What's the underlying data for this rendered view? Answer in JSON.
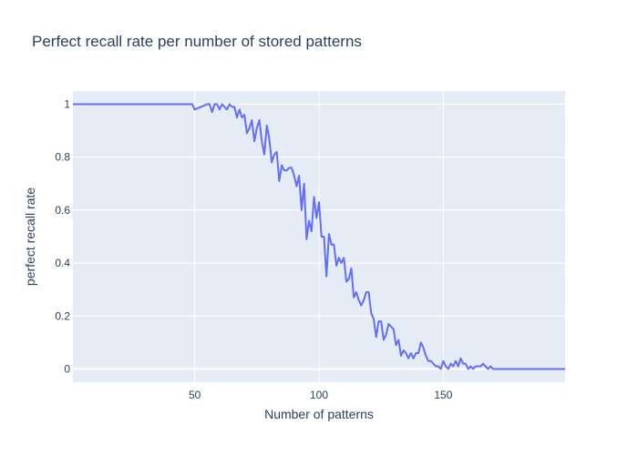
{
  "chart_data": {
    "type": "line",
    "title": "Perfect recall rate per number of stored patterns",
    "xlabel": "Number of patterns",
    "ylabel": "perfect recall rate",
    "xlim": [
      1,
      199
    ],
    "ylim": [
      -0.05,
      1.05
    ],
    "x_ticks": [
      50,
      100,
      150
    ],
    "y_ticks": [
      0,
      0.2,
      0.4,
      0.6,
      0.8,
      1
    ],
    "y_tick_labels": [
      "0",
      "0.2",
      "0.4",
      "0.6",
      "0.8",
      "1"
    ],
    "grid": true,
    "colors": {
      "line": "#636efa",
      "plot_bg": "#e5ecf6",
      "grid": "#ffffff",
      "text": "#2a3f5f"
    },
    "series": [
      {
        "x": [
          1,
          48,
          49,
          50,
          55,
          56,
          57,
          58,
          59,
          60,
          61,
          62,
          63,
          64,
          65,
          66,
          67,
          68,
          69,
          70,
          71,
          72,
          73,
          74,
          75,
          76,
          77,
          78,
          79,
          80,
          81,
          82,
          83,
          84,
          85,
          86,
          87,
          88,
          89,
          90,
          91,
          92,
          93,
          94,
          95,
          96,
          97,
          98,
          99,
          100,
          101,
          102,
          103,
          104,
          105,
          106,
          107,
          108,
          109,
          110,
          111,
          112,
          113,
          114,
          115,
          116,
          117,
          118,
          119,
          120,
          121,
          122,
          123,
          124,
          125,
          126,
          127,
          128,
          129,
          130,
          131,
          132,
          133,
          134,
          135,
          136,
          137,
          138,
          139,
          140,
          141,
          142,
          143,
          144,
          145,
          146,
          147,
          148,
          149,
          150,
          151,
          152,
          153,
          154,
          155,
          156,
          157,
          158,
          159,
          160,
          161,
          162,
          163,
          164,
          165,
          166,
          167,
          168,
          169,
          170,
          171,
          172,
          173,
          174,
          175,
          176,
          199
        ],
        "y": [
          1,
          1,
          1,
          0.98,
          1,
          1,
          0.97,
          1,
          1,
          0.98,
          1,
          0.99,
          0.98,
          1,
          0.99,
          0.99,
          0.95,
          0.98,
          0.95,
          0.96,
          0.89,
          0.91,
          0.94,
          0.86,
          0.91,
          0.94,
          0.86,
          0.81,
          0.92,
          0.87,
          0.78,
          0.81,
          0.82,
          0.71,
          0.77,
          0.75,
          0.75,
          0.76,
          0.76,
          0.73,
          0.69,
          0.73,
          0.6,
          0.7,
          0.49,
          0.56,
          0.52,
          0.65,
          0.57,
          0.63,
          0.5,
          0.5,
          0.35,
          0.51,
          0.47,
          0.47,
          0.39,
          0.42,
          0.4,
          0.42,
          0.33,
          0.34,
          0.38,
          0.27,
          0.29,
          0.26,
          0.24,
          0.26,
          0.29,
          0.29,
          0.21,
          0.19,
          0.12,
          0.18,
          0.18,
          0.11,
          0.13,
          0.17,
          0.16,
          0.15,
          0.09,
          0.11,
          0.05,
          0.07,
          0.06,
          0.04,
          0.06,
          0.04,
          0.06,
          0.06,
          0.1,
          0.08,
          0.05,
          0.03,
          0.03,
          0.02,
          0.01,
          0.01,
          0.0,
          0.03,
          0.01,
          0.0,
          0.02,
          0.01,
          0.03,
          0.01,
          0.04,
          0.02,
          0.02,
          0.0,
          0.01,
          0.0,
          0.01,
          0.01,
          0.01,
          0.02,
          0.01,
          0.0,
          0.01,
          0.0,
          0.0,
          0.0,
          0.0,
          0.0,
          0.0,
          0.0,
          0.0
        ]
      }
    ]
  }
}
